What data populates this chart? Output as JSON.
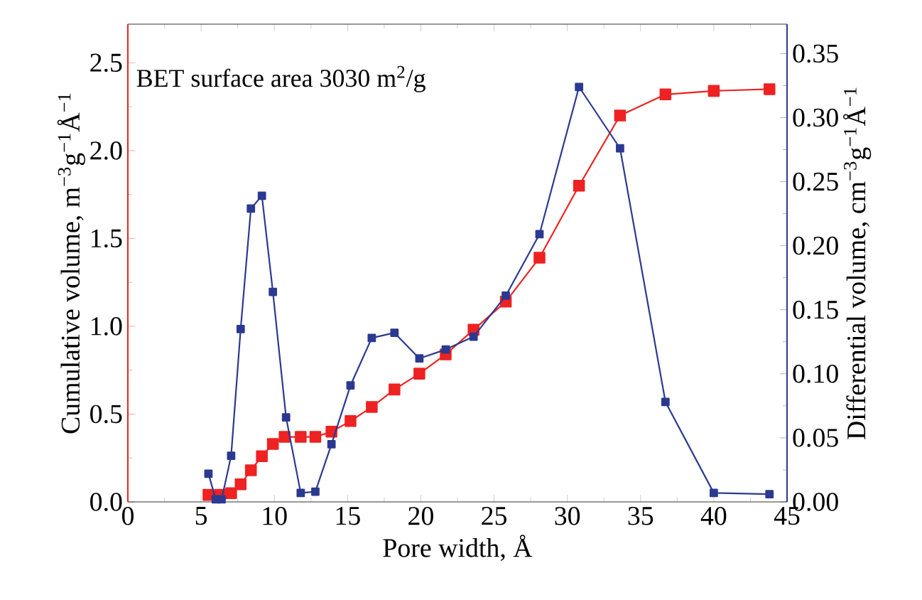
{
  "chart_data": {
    "type": "line",
    "xlabel": "Pore width, Å",
    "ylabel": "Cumulative volume, m$^{−3}$g$^{−1}$Å$^{−1}$",
    "y2label": "Differential volume, cm$^{−3}$g$^{−1}$Å$^{−1}$",
    "annotations": [
      "BET surface area 3030 m$^{2}$/g"
    ],
    "marker": "square",
    "line_style": "solid",
    "xlim": [
      0,
      45
    ],
    "xticks": [
      0,
      5,
      10,
      15,
      20,
      25,
      30,
      35,
      40,
      45
    ],
    "ylim": [
      0,
      2.72
    ],
    "yticks": [
      {
        "value": 0,
        "label": "0.0"
      },
      0.5,
      {
        "value": 1,
        "label": "1.0"
      },
      1.5,
      {
        "value": 2,
        "label": "2.0"
      },
      2.5
    ],
    "y2lim": [
      0,
      0.373
    ],
    "y2ticks": [
      {
        "value": 0,
        "label": "0.00"
      },
      {
        "value": 0.05,
        "label": "0.05"
      },
      {
        "value": 0.1,
        "label": "0.10"
      },
      {
        "value": 0.15,
        "label": "0.15"
      },
      {
        "value": 0.2,
        "label": "0.20"
      },
      {
        "value": 0.25,
        "label": "0.25"
      },
      {
        "value": 0.3,
        "label": "0.30"
      },
      {
        "value": 0.35,
        "label": "0.35"
      }
    ],
    "series": [
      {
        "color": "#ee2222",
        "x": [
          5.5,
          6.3,
          7.05,
          7.7,
          8.4,
          9.15,
          9.9,
          10.7,
          11.8,
          12.8,
          13.9,
          15.2,
          16.65,
          18.2,
          19.9,
          21.7,
          23.6,
          25.8,
          28.1,
          30.8,
          33.6,
          36.7,
          40.0,
          43.8
        ],
        "values": [
          0.04,
          0.04,
          0.05,
          0.1,
          0.18,
          0.26,
          0.33,
          0.37,
          0.37,
          0.37,
          0.4,
          0.46,
          0.54,
          0.64,
          0.73,
          0.84,
          0.98,
          1.14,
          1.39,
          1.8,
          2.2,
          2.32,
          2.34,
          2.35
        ]
      },
      {
        "color": "#2b3990",
        "axis": "y2",
        "x": [
          5.5,
          6.0,
          6.4,
          7.05,
          7.7,
          8.4,
          9.15,
          9.9,
          10.8,
          11.8,
          12.8,
          13.9,
          15.2,
          16.65,
          18.2,
          19.9,
          21.7,
          23.6,
          25.8,
          28.1,
          30.8,
          33.6,
          36.7,
          40.0,
          43.8
        ],
        "values": [
          0.022,
          0.002,
          0.002,
          0.036,
          0.135,
          0.229,
          0.239,
          0.164,
          0.066,
          0.007,
          0.008,
          0.045,
          0.091,
          0.128,
          0.132,
          0.112,
          0.119,
          0.129,
          0.161,
          0.209,
          0.324,
          0.276,
          0.078,
          0.007,
          0.006
        ]
      }
    ]
  }
}
